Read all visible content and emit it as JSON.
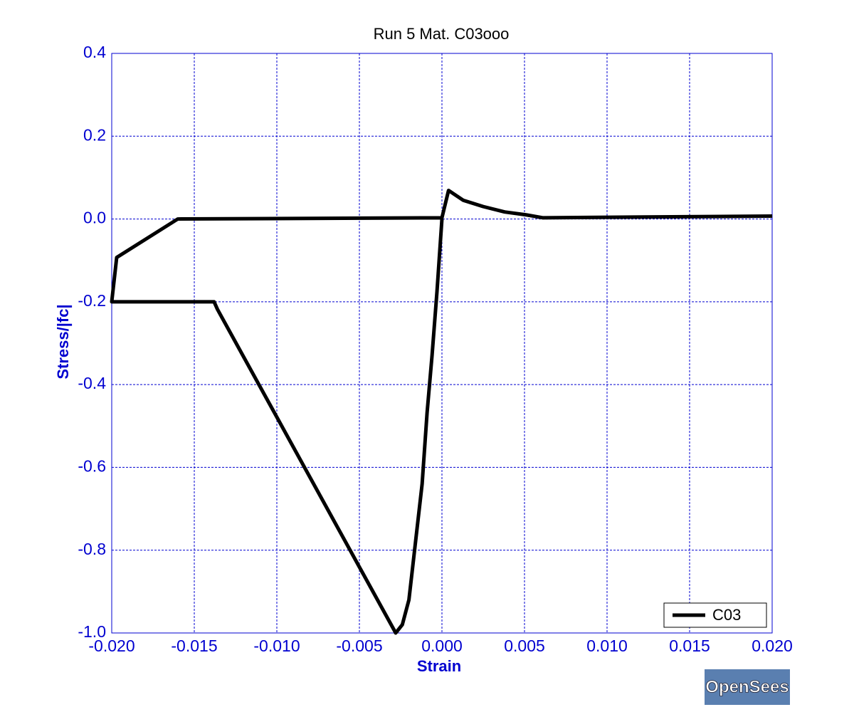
{
  "chart_data": {
    "type": "line",
    "title": "Run 5   Mat. C03ooo",
    "x_label": "Strain",
    "y_label": "Stress/|fc|",
    "series": [
      {
        "name": "C03",
        "color": "#000000",
        "x": [
          0.0,
          -0.0003,
          -0.0006,
          -0.0009,
          -0.0012,
          -0.0016,
          -0.002,
          -0.0024,
          -0.0028,
          -0.0136,
          -0.0138,
          -0.02,
          -0.0197,
          -0.016,
          0.0,
          0.0004,
          0.0013,
          0.0025,
          0.0038,
          0.0051,
          0.0061,
          0.02
        ],
        "values": [
          0.0,
          -0.175,
          -0.33,
          -0.468,
          -0.64,
          -0.78,
          -0.92,
          -0.98,
          -1.0,
          -0.218,
          -0.2,
          -0.2,
          -0.093,
          0.0,
          0.003,
          0.069,
          0.045,
          0.03,
          0.017,
          0.01,
          0.003,
          0.007
        ]
      }
    ],
    "xlim": [
      -0.02,
      0.02
    ],
    "xticks": [
      {
        "value": -0.02,
        "label": "-0.020"
      },
      {
        "value": -0.015,
        "label": "-0.015"
      },
      {
        "value": -0.01,
        "label": "-0.010"
      },
      {
        "value": -0.005,
        "label": "-0.005"
      },
      {
        "value": 0,
        "label": "0.000"
      },
      {
        "value": 0.005,
        "label": "0.005"
      },
      {
        "value": 0.01,
        "label": "0.010"
      },
      {
        "value": 0.015,
        "label": "0.015"
      },
      {
        "value": 0.02,
        "label": "0.020"
      }
    ],
    "ylim": [
      -1.0,
      0.4
    ],
    "yticks": [
      {
        "value": -1.0,
        "label": "-1.0"
      },
      -0.8,
      -0.6,
      -0.4,
      -0.2,
      {
        "value": 0,
        "label": "0.0"
      },
      0.2,
      0.4
    ],
    "grid": true,
    "legend": "lower right",
    "logo_text": "OpenSees"
  }
}
